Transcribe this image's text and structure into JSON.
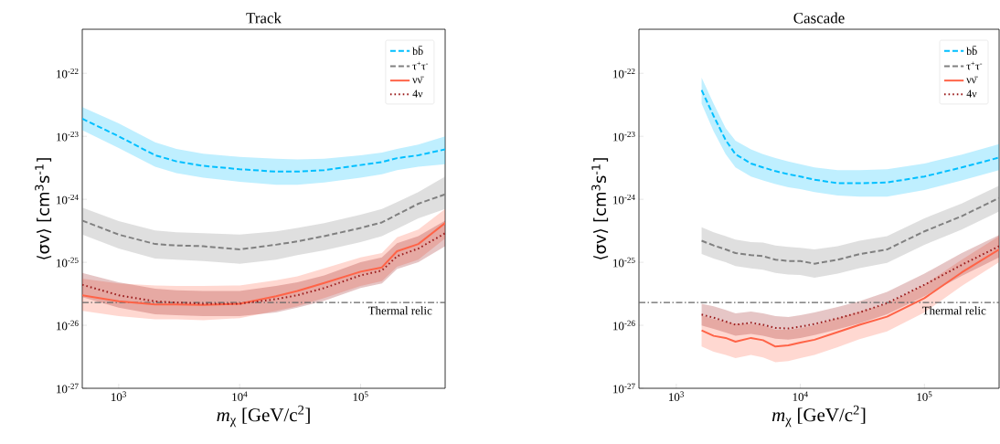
{
  "chart_data": [
    {
      "type": "line",
      "title": "Track",
      "xlabel": "*m*$_{χ}$ [GeV/c$^{2}$]",
      "ylabel": "⟨σv⟩ [cm$^{3}$s$^{-1}$]",
      "log": "xy",
      "legend": "top right",
      "x": [
        500,
        1000,
        2000,
        3000,
        5000,
        10000,
        20000,
        30000,
        50000,
        100000,
        150000,
        200000,
        300000,
        500000
      ],
      "series": [
        {
          "name": "bb̄",
          "color": "#00bfff",
          "line_style": "dashed",
          "values": [
            1.9e-23,
            1e-23,
            5e-24,
            4e-24,
            3.4e-24,
            3e-24,
            2.75e-24,
            2.75e-24,
            2.9e-24,
            3.5e-24,
            3.9e-24,
            4.5e-24,
            5e-24,
            6.2e-24
          ],
          "upper": [
            2.9e-23,
            1.6e-23,
            8e-24,
            6.3e-24,
            5.3e-24,
            4.7e-24,
            4.4e-24,
            4.3e-24,
            4.4e-24,
            5e-24,
            5.5e-24,
            6.3e-24,
            7.4e-24,
            1e-23
          ],
          "lower": [
            1.25e-23,
            6.5e-24,
            3.3e-24,
            2.6e-24,
            2.2e-24,
            1.9e-24,
            1.7e-24,
            1.7e-24,
            1.85e-24,
            2.2e-24,
            2.5e-24,
            2.9e-24,
            3.3e-24,
            3.6e-24
          ]
        },
        {
          "name": "τ$^{+}$τ$^{-}$",
          "color": "#808080",
          "line_style": "dashed",
          "values": [
            4.6e-25,
            2.75e-25,
            1.95e-25,
            1.85e-25,
            1.8e-25,
            1.6e-25,
            1.9e-25,
            2.15e-25,
            2.6e-25,
            3.5e-25,
            4.3e-25,
            5.7e-25,
            8.5e-25,
            1.2e-24
          ],
          "upper": [
            7.4e-25,
            4.5e-25,
            3.2e-25,
            3e-25,
            2.9e-25,
            2.75e-25,
            3.1e-25,
            3.5e-25,
            4.2e-25,
            5.7e-25,
            7e-25,
            9e-25,
            1.3e-24,
            2.3e-24
          ],
          "lower": [
            2.75e-25,
            1.65e-25,
            1.15e-25,
            1.1e-25,
            1.05e-25,
            9.5e-26,
            1.1e-25,
            1.3e-25,
            1.55e-25,
            2.1e-25,
            2.6e-25,
            3.4e-25,
            5e-25,
            7e-25
          ]
        },
        {
          "name": "νν̄",
          "color": "#ff6347",
          "line_style": "solid",
          "values": [
            3e-26,
            2.4e-26,
            2.15e-26,
            2.15e-26,
            2.1e-26,
            2.2e-26,
            2.9e-26,
            3.5e-26,
            4.7e-26,
            7.1e-26,
            8.3e-26,
            1.5e-25,
            1.95e-25,
            4.2e-25
          ],
          "upper": [
            5.5e-26,
            4.6e-26,
            4.3e-26,
            4.2e-26,
            4.2e-26,
            4.3e-26,
            5.2e-26,
            6e-26,
            8e-26,
            1.2e-25,
            1.4e-25,
            2.5e-25,
            3.3e-25,
            7e-25
          ],
          "lower": [
            1.7e-26,
            1.4e-26,
            1.25e-26,
            1.25e-26,
            1.2e-26,
            1.3e-26,
            1.7e-26,
            2e-26,
            2.7e-26,
            4.2e-26,
            5e-26,
            8.5e-26,
            1.1e-25,
            2.4e-25
          ]
        },
        {
          "name": "4ν",
          "color": "#9b1c1c",
          "line_style": "dotted",
          "values": [
            4.4e-26,
            3e-26,
            2.4e-26,
            2.3e-26,
            2.2e-26,
            2.2e-26,
            2.6e-26,
            3e-26,
            3.9e-26,
            6.2e-26,
            7.4e-26,
            1.25e-25,
            1.65e-25,
            2.9e-25
          ],
          "upper": [
            6.8e-26,
            4.8e-26,
            3.8e-26,
            3.6e-26,
            3.5e-26,
            3.5e-26,
            4.2e-26,
            4.8e-26,
            6.2e-26,
            1e-25,
            1.2e-25,
            2e-25,
            2.6e-25,
            4.6e-25
          ],
          "lower": [
            2.8e-26,
            1.9e-26,
            1.5e-26,
            1.45e-26,
            1.4e-26,
            1.4e-26,
            1.6e-26,
            1.9e-26,
            2.45e-26,
            3.9e-26,
            4.6e-26,
            7.8e-26,
            1e-25,
            1.8e-25
          ]
        }
      ],
      "xlim": [
        500,
        500000
      ],
      "ylim": [
        1e-27,
        5e-22
      ],
      "xticks": [
        {
          "value": 1000,
          "label": "10$^{3}$"
        },
        {
          "value": 10000,
          "label": "10$^{4}$"
        },
        {
          "value": 100000,
          "label": "10$^{5}$"
        }
      ],
      "yticks": [
        {
          "value": 1e-27,
          "label": "10$^{-27}$"
        },
        {
          "value": 1e-26,
          "label": "10$^{-26}$"
        },
        {
          "value": 1e-25,
          "label": "10$^{-25}$"
        },
        {
          "value": 1e-24,
          "label": "10$^{-24}$"
        },
        {
          "value": 1e-23,
          "label": "10$^{-23}$"
        },
        {
          "value": 1e-22,
          "label": "10$^{-22}$"
        }
      ],
      "ref_lines": [
        {
          "axis": "y",
          "value": 2.3e-26,
          "label": "Thermal relic",
          "color": "#666666",
          "line_style": "dashdot"
        }
      ]
    },
    {
      "type": "line",
      "title": "Cascade",
      "xlabel": "*m*$_{χ}$ [GeV/c$^{2}$]",
      "ylabel": "⟨σv⟩ [cm$^{3}$s$^{-1}$]",
      "log": "xy",
      "legend": "top right",
      "x": [
        1600,
        2000,
        2500,
        3000,
        4000,
        5000,
        6300,
        8000,
        10000,
        13000,
        20000,
        30000,
        50000,
        100000,
        200000,
        400000
      ],
      "series": [
        {
          "name": "bb̄",
          "color": "#00bfff",
          "line_style": "dashed",
          "values": [
            5.4e-23,
            2.1e-23,
            8.7e-24,
            5.2e-24,
            3.7e-24,
            3.2e-24,
            2.8e-24,
            2.5e-24,
            2.3e-24,
            2.05e-24,
            1.8e-24,
            1.8e-24,
            1.85e-24,
            2.3e-24,
            3.2e-24,
            4.6e-24
          ],
          "upper": [
            8.5e-23,
            3.3e-23,
            1.35e-23,
            8.5e-24,
            6.2e-24,
            5.2e-24,
            4.5e-24,
            4e-24,
            3.6e-24,
            3.2e-24,
            2.9e-24,
            2.9e-24,
            3e-24,
            3.7e-24,
            5.1e-24,
            7.5e-24
          ],
          "lower": [
            3.3e-23,
            1.2e-23,
            5.2e-24,
            3.2e-24,
            2.3e-24,
            2e-24,
            1.75e-24,
            1.55e-24,
            1.45e-24,
            1.3e-24,
            1.15e-24,
            1.1e-24,
            1.1e-24,
            1.4e-24,
            2e-24,
            2.9e-24
          ]
        },
        {
          "name": "τ$^{+}$τ$^{-}$",
          "color": "#808080",
          "line_style": "dashed",
          "values": [
            2.2e-25,
            1.85e-25,
            1.6e-25,
            1.4e-25,
            1.3e-25,
            1.25e-25,
            1.1e-25,
            1.05e-25,
            1.05e-25,
            9.5e-26,
            1.1e-25,
            1.35e-25,
            1.6e-25,
            3.1e-25,
            5.4e-25,
            1.05e-24
          ],
          "upper": [
            3.6e-25,
            3e-25,
            2.6e-25,
            2.3e-25,
            2.1e-25,
            2.05e-25,
            1.85e-25,
            1.75e-25,
            1.7e-25,
            1.6e-25,
            1.8e-25,
            2.2e-25,
            2.6e-25,
            5e-25,
            8.6e-25,
            1.65e-24
          ],
          "lower": [
            1.35e-25,
            1.15e-25,
            1e-25,
            8.7e-26,
            8e-26,
            7.6e-26,
            6.8e-26,
            6.4e-26,
            6.3e-26,
            5.7e-26,
            6.6e-26,
            8.1e-26,
            9.8e-26,
            1.9e-25,
            3.3e-25,
            6.4e-25
          ]
        },
        {
          "name": "νν̄",
          "color": "#ff6347",
          "line_style": "solid",
          "values": [
            8.3e-27,
            6.8e-27,
            6.3e-27,
            5.5e-27,
            6.3e-27,
            5.8e-27,
            4.6e-27,
            4.8e-27,
            5.3e-27,
            5.9e-27,
            7.8e-27,
            1.02e-26,
            1.37e-26,
            2.7e-26,
            6.9e-26,
            1.6e-25
          ],
          "upper": [
            1.45e-26,
            1.25e-26,
            1.15e-26,
            1.05e-26,
            1.05e-26,
            1e-26,
            8.5e-27,
            8.5e-27,
            9e-27,
            1e-26,
            1.3e-26,
            1.65e-26,
            2.2e-26,
            4.4e-26,
            1.1e-25,
            2.6e-25
          ],
          "lower": [
            4.6e-27,
            3.8e-27,
            3.4e-27,
            3e-27,
            3.4e-27,
            3.1e-27,
            2.6e-27,
            2.7e-27,
            3e-27,
            3.4e-27,
            4.5e-27,
            6e-27,
            8e-27,
            1.6e-26,
            4.2e-26,
            1e-25
          ]
        },
        {
          "name": "4ν",
          "color": "#9b1c1c",
          "line_style": "dotted",
          "values": [
            1.48e-26,
            1.32e-26,
            1.15e-26,
            1.02e-26,
            1.1e-26,
            1.02e-26,
            9.1e-27,
            8.9e-27,
            9.5e-27,
            1.05e-26,
            1.29e-26,
            1.6e-26,
            2.25e-26,
            4.4e-26,
            9.1e-26,
            1.8e-25
          ],
          "upper": [
            2.2e-26,
            2e-26,
            1.75e-26,
            1.55e-26,
            1.65e-26,
            1.55e-26,
            1.4e-26,
            1.35e-26,
            1.45e-26,
            1.6e-26,
            1.95e-26,
            2.4e-26,
            3.4e-26,
            6.6e-26,
            1.4e-25,
            2.7e-25
          ],
          "lower": [
            9.9e-27,
            8.8e-27,
            7.7e-27,
            6.8e-27,
            7.3e-27,
            6.8e-27,
            6.1e-27,
            5.9e-27,
            6.3e-27,
            7e-27,
            8.6e-27,
            1.07e-26,
            1.5e-26,
            2.9e-26,
            6.1e-26,
            1.2e-25
          ]
        }
      ],
      "xlim": [
        500,
        400000
      ],
      "ylim": [
        1e-27,
        5e-22
      ],
      "xticks": [
        {
          "value": 1000,
          "label": "10$^{3}$"
        },
        {
          "value": 10000,
          "label": "10$^{4}$"
        },
        {
          "value": 100000,
          "label": "10$^{5}$"
        }
      ],
      "yticks": [
        {
          "value": 1e-27,
          "label": "10$^{-27}$"
        },
        {
          "value": 1e-26,
          "label": "10$^{-26}$"
        },
        {
          "value": 1e-25,
          "label": "10$^{-25}$"
        },
        {
          "value": 1e-24,
          "label": "10$^{-24}$"
        },
        {
          "value": 1e-23,
          "label": "10$^{-23}$"
        },
        {
          "value": 1e-22,
          "label": "10$^{-22}$"
        }
      ],
      "ref_lines": [
        {
          "axis": "y",
          "value": 2.3e-26,
          "label": "Thermal relic",
          "color": "#666666",
          "line_style": "dashdot"
        }
      ]
    }
  ]
}
